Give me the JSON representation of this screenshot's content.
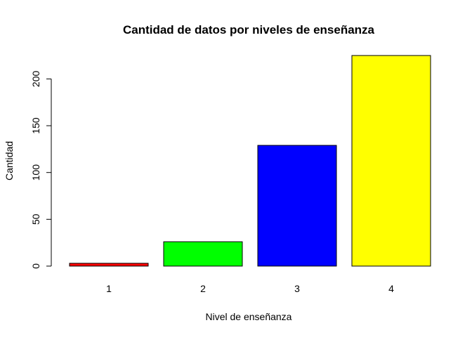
{
  "chart_data": {
    "type": "bar",
    "title": "Cantidad de datos por niveles de enseñanza",
    "xlabel": "Nivel de enseñanza",
    "ylabel": "Cantidad",
    "categories": [
      "1",
      "2",
      "3",
      "4"
    ],
    "values": [
      3,
      26,
      129,
      225
    ],
    "colors": [
      "#ff0000",
      "#00ff00",
      "#0000ff",
      "#ffff00"
    ],
    "yticks": [
      0,
      50,
      100,
      150,
      200
    ],
    "ylim": [
      0,
      225
    ],
    "grid": false,
    "legend": "none"
  }
}
